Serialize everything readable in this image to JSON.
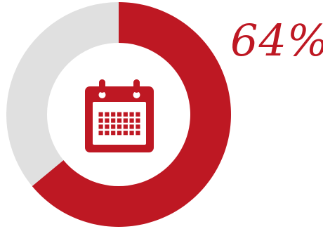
{
  "chart_data": {
    "type": "pie",
    "variant": "donut",
    "value_percent": 64,
    "remainder_percent": 36,
    "label": "64%",
    "colors": {
      "filled": "#BE1823",
      "remainder": "#E0E0E0"
    },
    "center_icon": "calendar-icon"
  }
}
